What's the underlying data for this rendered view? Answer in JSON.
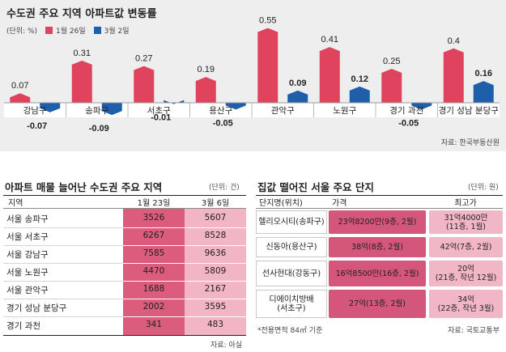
{
  "chart_data": {
    "type": "bar",
    "title": "수도권 주요 지역 아파트값 변동률",
    "unit_label": "(단위: %)",
    "categories": [
      "강남구",
      "송파구",
      "서초구",
      "용산구",
      "관악구",
      "노원구",
      "경기 과천",
      "경기 성남 분당구"
    ],
    "series": [
      {
        "name": "1월 26일",
        "color": "#e0435d",
        "values": [
          0.07,
          0.31,
          0.27,
          0.19,
          0.55,
          0.41,
          0.25,
          0.4
        ]
      },
      {
        "name": "3월 2일",
        "color": "#1f5ea8",
        "values": [
          -0.07,
          -0.09,
          -0.01,
          -0.05,
          0.09,
          0.12,
          -0.05,
          0.16
        ]
      }
    ],
    "value_labels": {
      "s0": [
        "0.07",
        "0.31",
        "0.27",
        "0.19",
        "0.55",
        "0.41",
        "0.25",
        "0.4"
      ],
      "s1": [
        "-0.07",
        "-0.09",
        "-0.01",
        "-0.05",
        "0.09",
        "0.12",
        "-0.05",
        "0.16"
      ]
    },
    "ylim": [
      -0.1,
      0.6
    ],
    "grid": false,
    "legend": "top-left",
    "source": "자료: 한국부동산원"
  },
  "listing_table": {
    "title": "아파트 매물 늘어난 수도권 주요 지역",
    "unit": "(단위: 건)",
    "headers": [
      "지역",
      "1월 23일",
      "3월 6일"
    ],
    "rows": [
      {
        "region": "서울 송파구",
        "jan23": "3526",
        "mar6": "5607"
      },
      {
        "region": "서울 서초구",
        "jan23": "6267",
        "mar6": "8528"
      },
      {
        "region": "서울 강남구",
        "jan23": "7585",
        "mar6": "9636"
      },
      {
        "region": "서울 노원구",
        "jan23": "4470",
        "mar6": "5809"
      },
      {
        "region": "서울 관악구",
        "jan23": "1688",
        "mar6": "2167"
      },
      {
        "region": "경기 성남 분당구",
        "jan23": "2002",
        "mar6": "3595"
      },
      {
        "region": "경기 과천",
        "jan23": "341",
        "mar6": "483"
      }
    ],
    "source": "자료: 아실"
  },
  "price_table": {
    "title": "집값 떨어진 서울 주요 단지",
    "unit": "(단위: 원)",
    "headers": [
      "단지명(위치)",
      "가격",
      "최고가"
    ],
    "rows": [
      {
        "name": "헬리오시티(송파구)",
        "price": "23억8200만(9층, 2월)",
        "peak": "31억4000만\n(11층, 1월)"
      },
      {
        "name": "신동아(용산구)",
        "price": "38억(8층, 2월)",
        "peak": "42억(7층, 2월)"
      },
      {
        "name": "선사현대(강동구)",
        "price": "16억8500만(16층, 2월)",
        "peak": "20억\n(21층, 작년 12월)"
      },
      {
        "name": "디에이치방배\n(서초구)",
        "price": "27억(13층, 2월)",
        "peak": "34억\n(22층, 작년 3월)"
      }
    ],
    "footnote": "*전용면적 84㎡ 기준",
    "source": "자료: 국토교통부"
  }
}
